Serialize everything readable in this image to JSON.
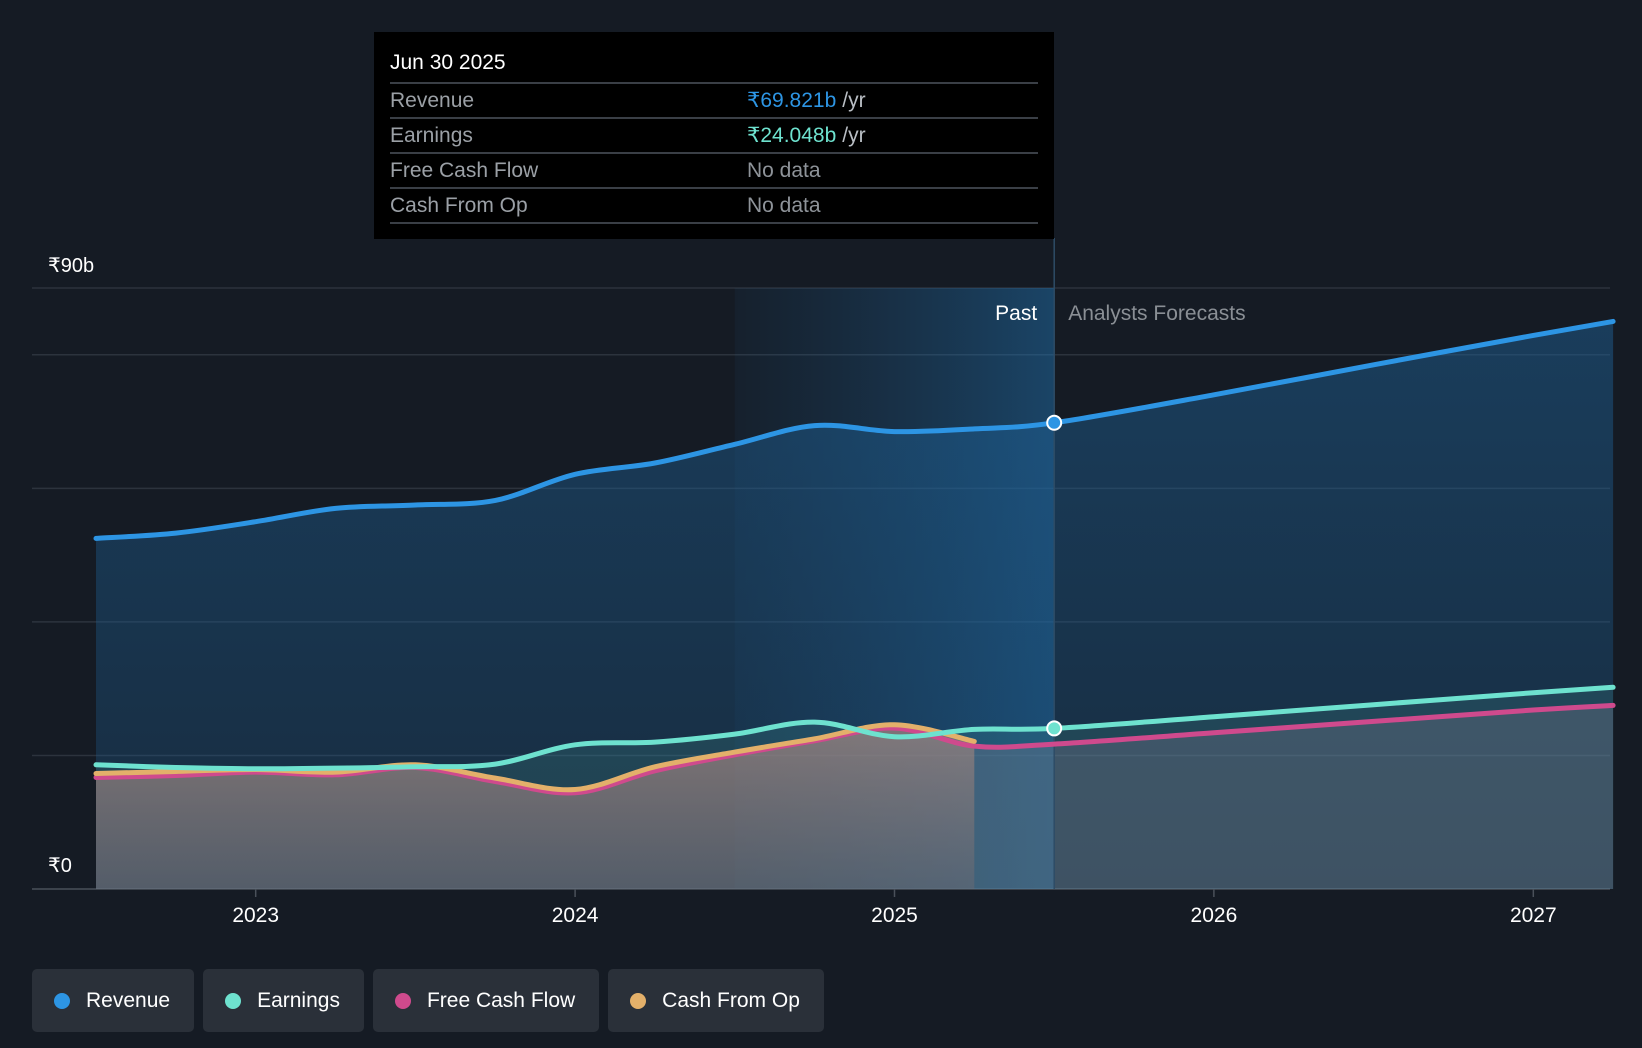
{
  "tooltip": {
    "date": "Jun 30 2025",
    "rows": [
      {
        "label": "Revenue",
        "value": "₹69.821b",
        "unit": "/yr",
        "color": "#2d95e4"
      },
      {
        "label": "Earnings",
        "value": "₹24.048b",
        "unit": "/yr",
        "color": "#6ee2cf"
      },
      {
        "label": "Free Cash Flow",
        "value": "No data",
        "unit": "",
        "color": ""
      },
      {
        "label": "Cash From Op",
        "value": "No data",
        "unit": "",
        "color": ""
      }
    ]
  },
  "chart_data": {
    "type": "area",
    "title": "",
    "xlabel": "",
    "ylabel": "",
    "x_range": [
      2022.5,
      2027.25
    ],
    "ylim": [
      0,
      90
    ],
    "y_tick_labels": [
      {
        "value": 90,
        "label": "₹90b"
      },
      {
        "value": 0,
        "label": "₹0"
      }
    ],
    "gridlines": [
      20,
      40,
      60,
      80,
      90
    ],
    "x_ticks": [
      {
        "value": 2023,
        "label": "2023"
      },
      {
        "value": 2024,
        "label": "2024"
      },
      {
        "value": 2025,
        "label": "2025"
      },
      {
        "value": 2026,
        "label": "2026"
      },
      {
        "value": 2027,
        "label": "2027"
      }
    ],
    "past_label": "Past",
    "forecast_label": "Analysts Forecasts",
    "highlight_start": 2024.5,
    "divider_x": 2025.5,
    "series": [
      {
        "name": "Revenue",
        "color": "#2d95e4",
        "points": [
          [
            2022.5,
            52.5
          ],
          [
            2022.75,
            53.3
          ],
          [
            2023.0,
            55.0
          ],
          [
            2023.25,
            57.0
          ],
          [
            2023.5,
            57.5
          ],
          [
            2023.75,
            58.2
          ],
          [
            2024.0,
            62.1
          ],
          [
            2024.25,
            63.8
          ],
          [
            2024.5,
            66.6
          ],
          [
            2024.75,
            69.4
          ],
          [
            2025.0,
            68.5
          ],
          [
            2025.25,
            68.9
          ],
          [
            2025.5,
            69.821
          ],
          [
            2026.0,
            74.0
          ],
          [
            2026.5,
            78.5
          ],
          [
            2027.0,
            82.9
          ],
          [
            2027.25,
            85.0
          ]
        ],
        "forecast_from": 2025.5
      },
      {
        "name": "Earnings",
        "color": "#6ee2cf",
        "points": [
          [
            2022.5,
            18.6
          ],
          [
            2022.75,
            18.2
          ],
          [
            2023.0,
            18.0
          ],
          [
            2023.25,
            18.1
          ],
          [
            2023.5,
            18.3
          ],
          [
            2023.75,
            18.7
          ],
          [
            2024.0,
            21.6
          ],
          [
            2024.25,
            22.0
          ],
          [
            2024.5,
            23.2
          ],
          [
            2024.75,
            25.0
          ],
          [
            2025.0,
            22.8
          ],
          [
            2025.25,
            23.9
          ],
          [
            2025.5,
            24.048
          ],
          [
            2026.0,
            25.8
          ],
          [
            2026.5,
            27.6
          ],
          [
            2027.0,
            29.4
          ],
          [
            2027.25,
            30.2
          ]
        ],
        "forecast_from": 2025.5
      },
      {
        "name": "Free Cash Flow",
        "color": "#cf4a8d",
        "points": [
          [
            2022.5,
            16.7
          ],
          [
            2022.75,
            17.0
          ],
          [
            2023.0,
            17.5
          ],
          [
            2023.25,
            17.1
          ],
          [
            2023.5,
            18.2
          ],
          [
            2023.75,
            16.1
          ],
          [
            2024.0,
            14.4
          ],
          [
            2024.25,
            17.7
          ],
          [
            2024.5,
            20.1
          ],
          [
            2024.75,
            22.2
          ],
          [
            2025.0,
            24.1
          ],
          [
            2025.25,
            21.4
          ],
          [
            2025.5,
            21.7
          ],
          [
            2026.0,
            23.4
          ],
          [
            2026.5,
            25.1
          ],
          [
            2027.0,
            26.8
          ],
          [
            2027.25,
            27.5
          ]
        ],
        "forecast_from": 2025.25
      },
      {
        "name": "Cash From Op",
        "color": "#e3b06a",
        "points": [
          [
            2022.5,
            17.3
          ],
          [
            2022.75,
            17.6
          ],
          [
            2023.0,
            17.9
          ],
          [
            2023.25,
            17.5
          ],
          [
            2023.5,
            18.6
          ],
          [
            2023.75,
            16.6
          ],
          [
            2024.0,
            14.9
          ],
          [
            2024.25,
            18.3
          ],
          [
            2024.5,
            20.5
          ],
          [
            2024.75,
            22.5
          ],
          [
            2025.0,
            24.6
          ],
          [
            2025.25,
            22.1
          ]
        ],
        "forecast_from": null
      }
    ]
  },
  "legend": [
    {
      "label": "Revenue",
      "color": "#2d95e4"
    },
    {
      "label": "Earnings",
      "color": "#6ee2cf"
    },
    {
      "label": "Free Cash Flow",
      "color": "#cf4a8d"
    },
    {
      "label": "Cash From Op",
      "color": "#e3b06a"
    }
  ]
}
